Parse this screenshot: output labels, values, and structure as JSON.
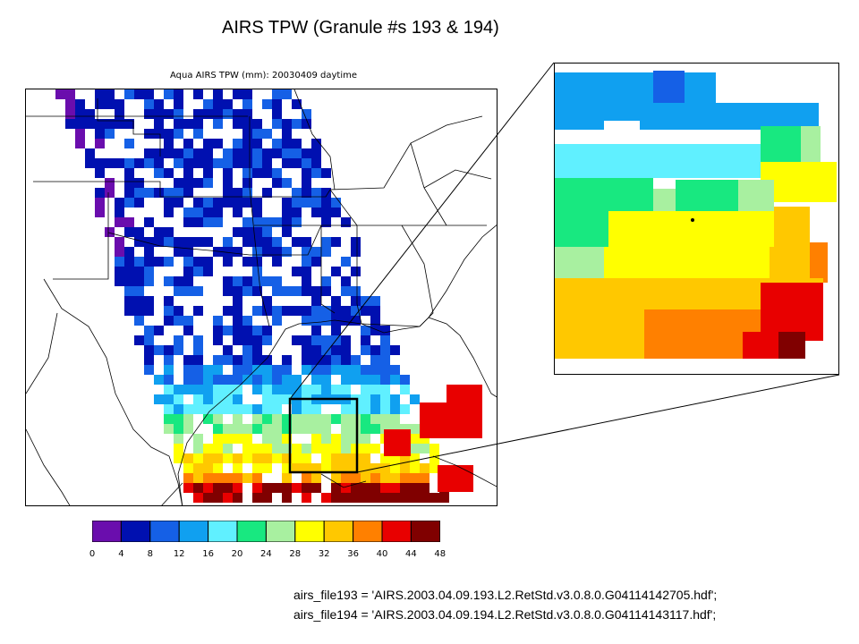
{
  "header": {
    "title": "AIRS TPW (Granule #s 193 & 194)"
  },
  "map": {
    "title": "Aqua AIRS TPW (mm): 20030409 daytime"
  },
  "colorbar": {
    "tick_labels": [
      "0",
      "4",
      "8",
      "12",
      "16",
      "20",
      "24",
      "28",
      "32",
      "36",
      "40",
      "44",
      "48"
    ],
    "colors": [
      "#6a0dad",
      "#0010b0",
      "#1560e6",
      "#10a0f0",
      "#60f0ff",
      "#18e880",
      "#a8f0a0",
      "#ffff00",
      "#ffc800",
      "#ff8000",
      "#e80000",
      "#800000"
    ]
  },
  "files": {
    "line1": "airs_file193 = 'AIRS.2003.04.09.193.L2.RetStd.v3.0.8.0.G04114142705.hdf';",
    "line2": "airs_file194 = 'AIRS.2003.04.09.194.L2.RetStd.v3.0.8.0.G04114143117.hdf';"
  }
}
